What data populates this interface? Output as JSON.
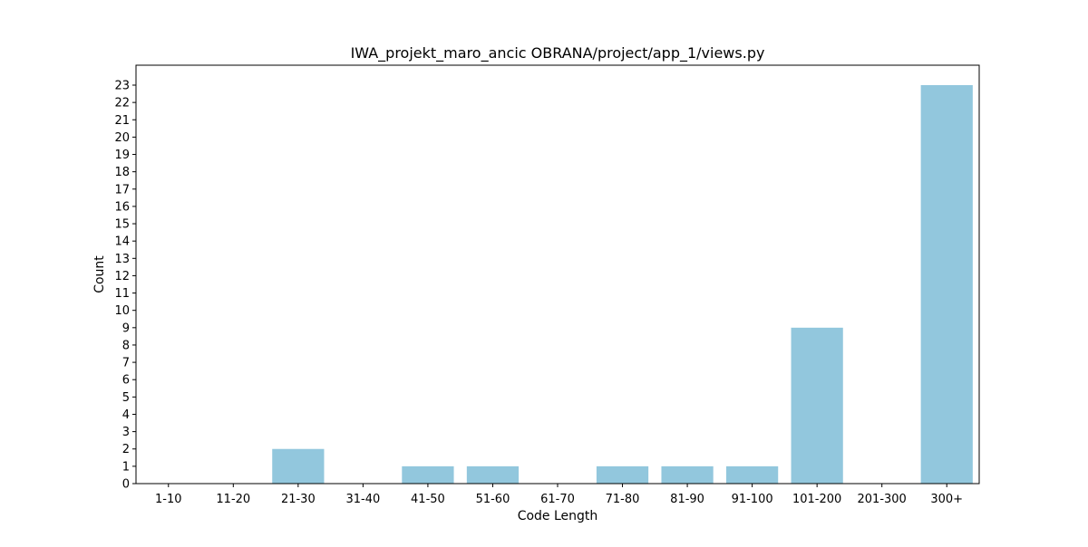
{
  "chart_data": {
    "type": "bar",
    "title": "IWA_projekt_maro_ancic  OBRANA/project/app_1/views.py",
    "xlabel": "Code Length",
    "ylabel": "Count",
    "categories": [
      "1-10",
      "11-20",
      "21-30",
      "31-40",
      "41-50",
      "51-60",
      "61-70",
      "71-80",
      "81-90",
      "91-100",
      "101-200",
      "201-300",
      "300+"
    ],
    "values": [
      0,
      0,
      2,
      0,
      1,
      1,
      0,
      1,
      1,
      1,
      9,
      0,
      23
    ],
    "yticks": [
      0,
      1,
      2,
      3,
      4,
      5,
      6,
      7,
      8,
      9,
      10,
      11,
      12,
      13,
      14,
      15,
      16,
      17,
      18,
      19,
      20,
      21,
      22,
      23
    ],
    "ylim": [
      0,
      24.15
    ],
    "grid": false,
    "bar_color": "#92c7dd",
    "axis_color": "#000000"
  }
}
